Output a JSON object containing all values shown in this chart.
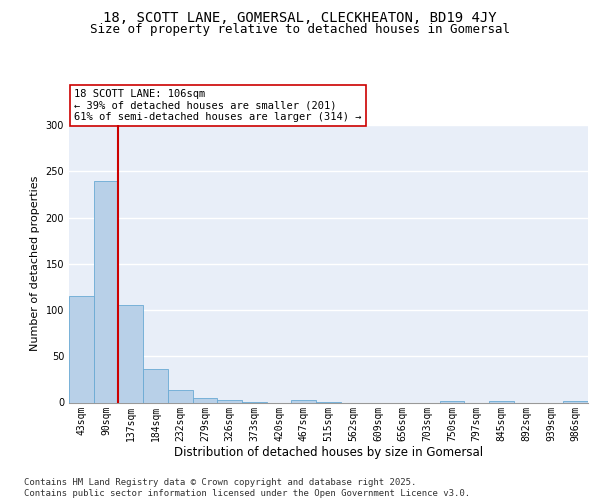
{
  "title1": "18, SCOTT LANE, GOMERSAL, CLECKHEATON, BD19 4JY",
  "title2": "Size of property relative to detached houses in Gomersal",
  "xlabel": "Distribution of detached houses by size in Gomersal",
  "ylabel": "Number of detached properties",
  "categories": [
    "43sqm",
    "90sqm",
    "137sqm",
    "184sqm",
    "232sqm",
    "279sqm",
    "326sqm",
    "373sqm",
    "420sqm",
    "467sqm",
    "515sqm",
    "562sqm",
    "609sqm",
    "656sqm",
    "703sqm",
    "750sqm",
    "797sqm",
    "845sqm",
    "892sqm",
    "939sqm",
    "986sqm"
  ],
  "values": [
    115,
    239,
    105,
    36,
    13,
    5,
    3,
    1,
    0,
    3,
    1,
    0,
    0,
    0,
    0,
    2,
    0,
    2,
    0,
    0,
    2
  ],
  "bar_color": "#b8d0e8",
  "bar_edge_color": "#6aaad4",
  "vline_x": 1.5,
  "vline_color": "#cc0000",
  "annotation_text": "18 SCOTT LANE: 106sqm\n← 39% of detached houses are smaller (201)\n61% of semi-detached houses are larger (314) →",
  "annotation_box_color": "#ffffff",
  "annotation_box_edge": "#cc0000",
  "ylim": [
    0,
    300
  ],
  "yticks": [
    0,
    50,
    100,
    150,
    200,
    250,
    300
  ],
  "background_color": "#e8eef8",
  "grid_color": "#ffffff",
  "footer_text": "Contains HM Land Registry data © Crown copyright and database right 2025.\nContains public sector information licensed under the Open Government Licence v3.0.",
  "title_fontsize": 10,
  "subtitle_fontsize": 9,
  "ylabel_fontsize": 8,
  "xlabel_fontsize": 8.5,
  "tick_fontsize": 7,
  "annotation_fontsize": 7.5,
  "footer_fontsize": 6.5
}
